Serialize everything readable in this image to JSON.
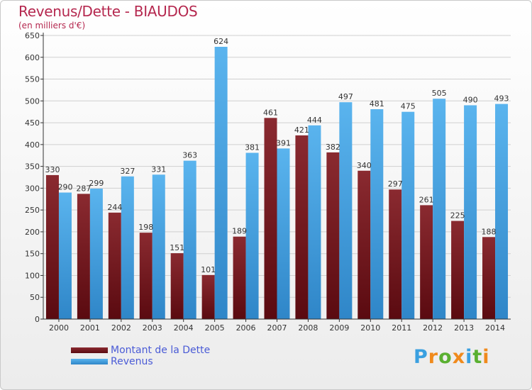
{
  "title": "Revenus/Dette - BIAUDOS",
  "subtitle": "(en milliers d'€)",
  "logo": {
    "text": "Proxiti",
    "letter_colors": [
      "#3aa0e0",
      "#f08a1c",
      "#5ab031",
      "#f08a1c",
      "#3aa0e0",
      "#5ab031",
      "#f08a1c"
    ]
  },
  "colors": {
    "dette": "#7a1a22",
    "revenus": "#4aa8e8",
    "axis": "#333333",
    "grid": "#d0d0d0"
  },
  "chart_data": {
    "type": "bar",
    "title": "Revenus/Dette - BIAUDOS",
    "subtitle": "(en milliers d'€)",
    "categories": [
      "2000",
      "2001",
      "2002",
      "2003",
      "2004",
      "2005",
      "2006",
      "2007",
      "2008",
      "2009",
      "2010",
      "2011",
      "2012",
      "2013",
      "2014"
    ],
    "series": [
      {
        "name": "Montant de la Dette",
        "values": [
          330,
          287,
          244,
          198,
          151,
          101,
          189,
          461,
          421,
          382,
          340,
          297,
          261,
          225,
          188
        ],
        "labels": [
          "330",
          "287",
          "244",
          "198",
          "151",
          "101",
          "189",
          "461",
          "421",
          "382",
          "340",
          "297",
          "261",
          "225",
          "188"
        ]
      },
      {
        "name": "Revenus",
        "values": [
          290,
          299,
          327,
          331,
          363,
          624,
          381,
          391,
          444,
          497,
          481,
          475,
          505,
          490,
          493
        ],
        "labels": [
          "290",
          "299",
          "327",
          "331",
          "363",
          "624",
          "381",
          "391",
          "444",
          "497",
          "481",
          "475",
          "505",
          "490",
          "493"
        ]
      }
    ],
    "ylim": [
      0,
      650
    ],
    "yticks": [
      0,
      50,
      100,
      150,
      200,
      250,
      300,
      350,
      400,
      450,
      500,
      550,
      600,
      650
    ],
    "grid": true,
    "legend_position": "bottom-left"
  }
}
